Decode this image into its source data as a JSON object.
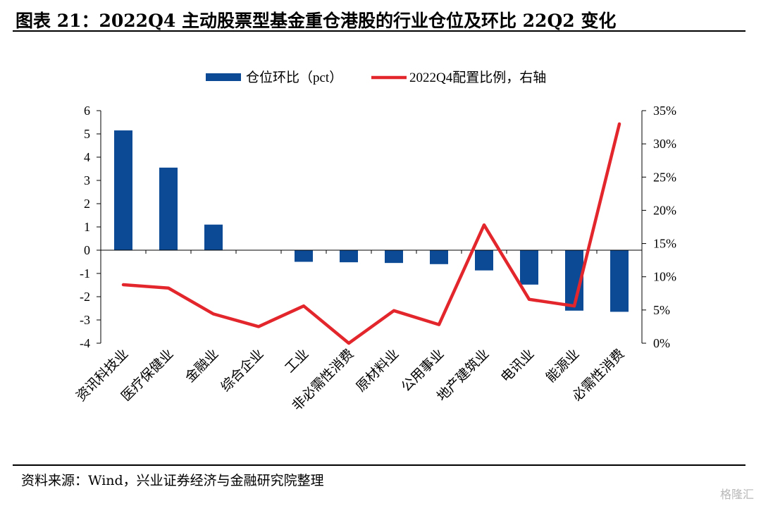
{
  "title": "图表 21：2022Q4 主动股票型基金重仓港股的行业仓位及环比 22Q2 变化",
  "source": "资料来源：Wind，兴业证券经济与金融研究院整理",
  "watermark": "格隆汇",
  "chart_data": {
    "type": "bar+line",
    "categories": [
      "资讯科技业",
      "医疗保健业",
      "金融业",
      "综合企业",
      "工业",
      "非必需性消费",
      "原材料业",
      "公用事业",
      "地产建筑业",
      "电讯业",
      "能源业",
      "必需性消费"
    ],
    "series": [
      {
        "name": "仓位环比（pct）",
        "type": "bar",
        "axis": "left",
        "color": "#0d4a96",
        "values": [
          5.15,
          3.55,
          1.1,
          0.0,
          -0.5,
          -0.52,
          -0.55,
          -0.6,
          -0.87,
          -1.48,
          -2.6,
          -2.65
        ]
      },
      {
        "name": "2022Q4配置比例，右轴",
        "type": "line",
        "axis": "right",
        "color": "#e3262c",
        "values": [
          8.8,
          8.3,
          4.4,
          2.5,
          5.6,
          0.0,
          4.9,
          2.8,
          17.8,
          6.6,
          5.6,
          33.0
        ]
      }
    ],
    "y_left": {
      "min": -4,
      "max": 6,
      "ticks": [
        "6",
        "5",
        "4",
        "3",
        "2",
        "1",
        "0",
        "-1",
        "-2",
        "-3",
        "-4"
      ]
    },
    "y_right": {
      "min": 0,
      "max": 35,
      "ticks": [
        "35%",
        "30%",
        "25%",
        "20%",
        "15%",
        "10%",
        "5%",
        "0%"
      ]
    },
    "legend_position": "top",
    "grid": false
  }
}
